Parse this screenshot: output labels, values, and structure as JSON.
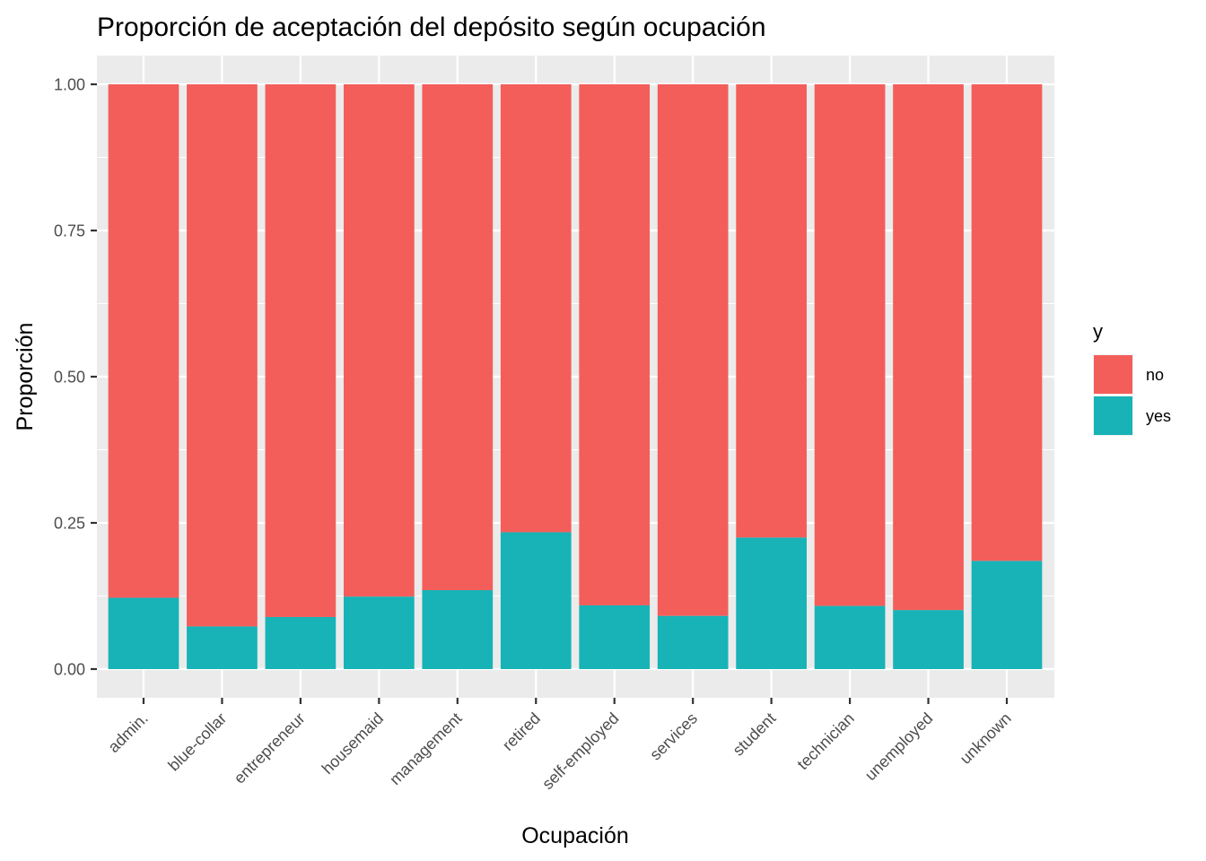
{
  "chart_data": {
    "type": "bar",
    "stacked": true,
    "title": "Proporción de aceptación del depósito según ocupación",
    "xlabel": "Ocupación",
    "ylabel": "Proporción",
    "ylim": [
      0,
      1
    ],
    "y_ticks": [
      "0.00",
      "0.25",
      "0.50",
      "0.75",
      "1.00"
    ],
    "grid": true,
    "legend": {
      "title": "y",
      "position": "right"
    },
    "categories": [
      "admin.",
      "blue-collar",
      "entrepreneur",
      "housemaid",
      "management",
      "retired",
      "self-employed",
      "services",
      "student",
      "technician",
      "unemployed",
      "unknown"
    ],
    "series": [
      {
        "name": "no",
        "color": "#F35E5A",
        "values": [
          0.878,
          0.927,
          0.911,
          0.876,
          0.865,
          0.766,
          0.891,
          0.909,
          0.775,
          0.892,
          0.899,
          0.815
        ]
      },
      {
        "name": "yes",
        "color": "#17B3B7",
        "values": [
          0.122,
          0.073,
          0.089,
          0.124,
          0.135,
          0.234,
          0.109,
          0.091,
          0.225,
          0.108,
          0.101,
          0.185
        ]
      }
    ]
  }
}
